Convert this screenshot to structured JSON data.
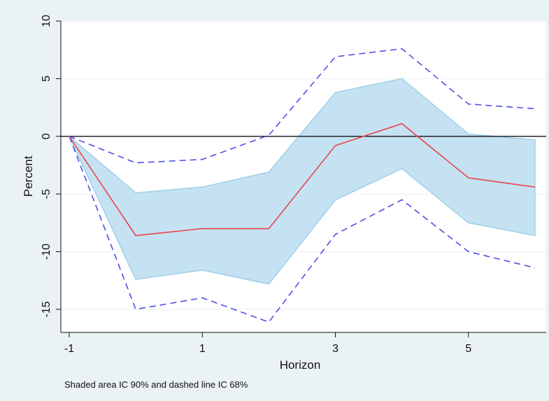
{
  "chart_data": {
    "type": "line",
    "title": "",
    "xlabel": "Horizon",
    "ylabel": "Percent",
    "x": [
      -1,
      0,
      1,
      2,
      3,
      4,
      5,
      6
    ],
    "xlim": [
      -1,
      6
    ],
    "ylim": [
      -17,
      10
    ],
    "xticks": [
      -1,
      1,
      3,
      5
    ],
    "yticks": [
      10,
      5,
      0,
      -5,
      -10,
      -15
    ],
    "zero_line": true,
    "grid": "horizontal",
    "series": [
      {
        "role": "shaded-band-90",
        "lower": [
          0,
          -12.4,
          -11.6,
          -12.8,
          -5.5,
          -2.8,
          -7.5,
          -8.6
        ],
        "upper": [
          0,
          -4.9,
          -4.4,
          -3.1,
          3.8,
          5.0,
          0.2,
          -0.3
        ],
        "color": "#a9d3ec"
      },
      {
        "role": "point-estimate",
        "values": [
          0,
          -8.6,
          -8.0,
          -8.0,
          -0.8,
          1.1,
          -3.6,
          -4.4
        ],
        "color": "#e8474b"
      },
      {
        "role": "dashed-upper-68",
        "values": [
          0,
          -2.3,
          -2.0,
          0.1,
          6.9,
          7.6,
          2.8,
          2.4
        ],
        "color": "#4f4fe6"
      },
      {
        "role": "dashed-lower-68",
        "values": [
          0,
          -15.0,
          -14.0,
          -16.1,
          -8.5,
          -5.5,
          -10.0,
          -11.4
        ],
        "color": "#4f4fe6"
      }
    ],
    "note": "Shaded area IC 90% and dashed line IC 68%"
  }
}
